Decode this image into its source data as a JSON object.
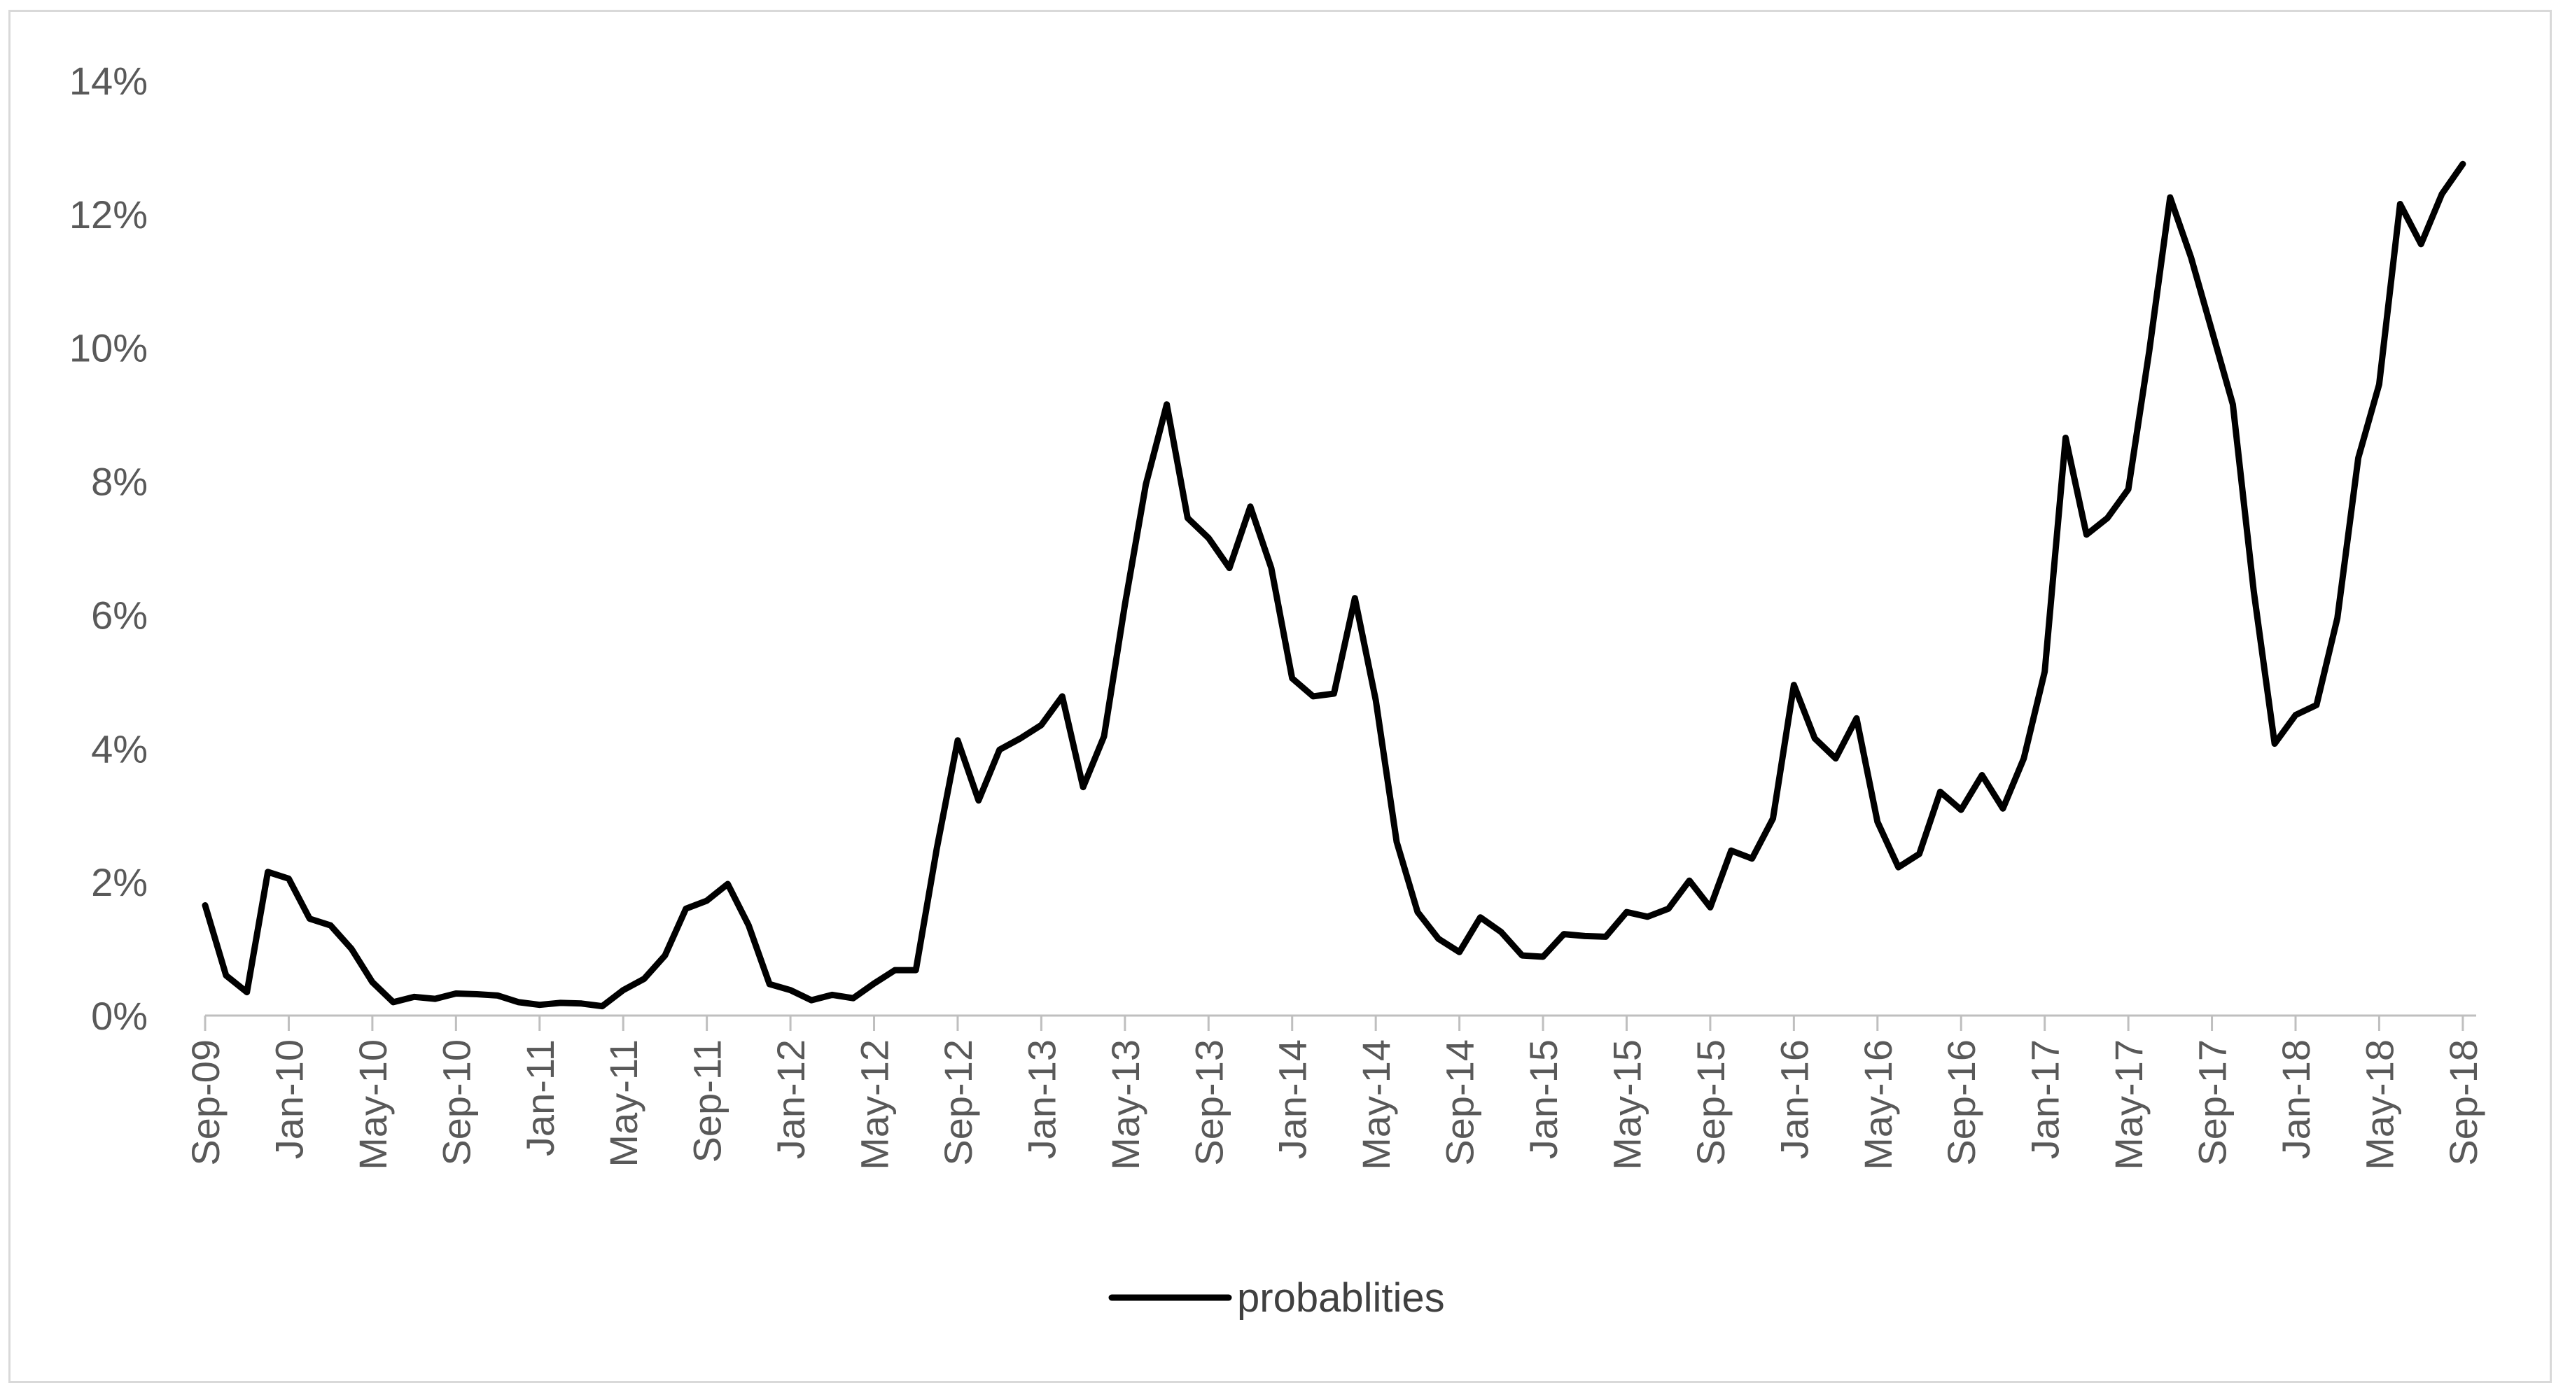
{
  "chart_data": {
    "type": "line",
    "title": "",
    "xlabel": "",
    "ylabel": "",
    "ylim": [
      0,
      14
    ],
    "y_ticks": [
      "0%",
      "2%",
      "4%",
      "6%",
      "8%",
      "10%",
      "12%",
      "14%"
    ],
    "x_tick_labels": [
      "Sep-09",
      "Jan-10",
      "May-10",
      "Sep-10",
      "Jan-11",
      "May-11",
      "Sep-11",
      "Jan-12",
      "May-12",
      "Sep-12",
      "Jan-13",
      "May-13",
      "Sep-13",
      "Jan-14",
      "May-14",
      "Sep-14",
      "Jan-15",
      "May-15",
      "Sep-15",
      "Jan-16",
      "May-16",
      "Sep-16",
      "Jan-17",
      "May-17",
      "Sep-17",
      "Jan-18",
      "May-18",
      "Sep-18"
    ],
    "grid": false,
    "legend_position": "bottom",
    "series": [
      {
        "name": "probablities",
        "color": "#000000",
        "values": [
          1.65,
          0.6,
          0.35,
          2.15,
          2.05,
          1.45,
          1.35,
          1.0,
          0.5,
          0.2,
          0.28,
          0.25,
          0.33,
          0.32,
          0.3,
          0.2,
          0.16,
          0.19,
          0.18,
          0.14,
          0.38,
          0.55,
          0.9,
          1.6,
          1.72,
          1.97,
          1.35,
          0.47,
          0.38,
          0.23,
          0.31,
          0.26,
          0.48,
          0.68,
          0.68,
          2.5,
          4.12,
          3.22,
          3.98,
          4.15,
          4.35,
          4.78,
          3.42,
          4.18,
          6.15,
          7.95,
          9.15,
          7.45,
          7.15,
          6.7,
          7.62,
          6.7,
          5.05,
          4.78,
          4.82,
          6.25,
          4.72,
          2.6,
          1.55,
          1.15,
          0.95,
          1.47,
          1.25,
          0.9,
          0.88,
          1.22,
          1.19,
          1.18,
          1.55,
          1.48,
          1.6,
          2.02,
          1.62,
          2.47,
          2.35,
          2.95,
          4.95,
          4.15,
          3.85,
          4.45,
          2.9,
          2.22,
          2.42,
          3.35,
          3.08,
          3.6,
          3.1,
          3.85,
          5.15,
          8.65,
          7.2,
          7.45,
          7.88,
          9.95,
          12.25,
          11.35,
          10.25,
          9.15,
          6.35,
          4.07,
          4.5,
          4.65,
          5.95,
          8.35,
          9.45,
          12.15,
          11.55,
          12.3,
          12.75
        ]
      }
    ]
  }
}
